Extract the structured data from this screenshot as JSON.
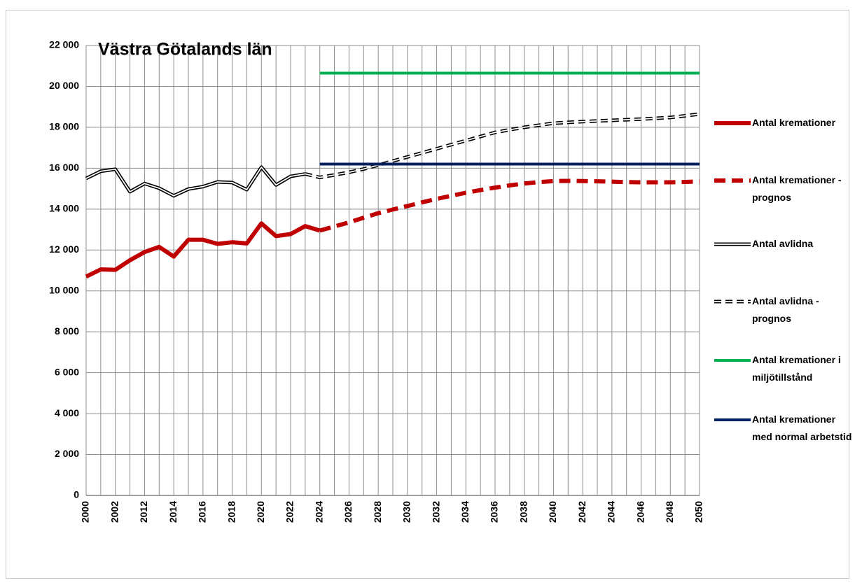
{
  "chart_data": {
    "type": "line",
    "title": "Västra Götalands län",
    "categories": [
      "2000",
      null,
      "2002",
      null,
      "2012",
      null,
      "2014",
      null,
      "2016",
      null,
      "2018",
      null,
      "2020",
      null,
      "2022",
      null,
      "2024",
      null,
      "2026",
      null,
      "2028",
      null,
      "2030",
      null,
      "2032",
      null,
      "2034",
      null,
      "2036",
      null,
      "2038",
      null,
      "2040",
      null,
      "2042",
      null,
      "2044",
      null,
      "2046",
      null,
      "2048",
      null,
      "2050"
    ],
    "ylim": [
      0,
      22000
    ],
    "yticks": [
      0,
      {
        "value": 2000,
        "label": "2 000"
      },
      {
        "value": 4000,
        "label": "4 000"
      },
      {
        "value": 6000,
        "label": "6 000"
      },
      {
        "value": 8000,
        "label": "8 000"
      },
      {
        "value": 10000,
        "label": "10 000"
      },
      {
        "value": 12000,
        "label": "12 000"
      },
      {
        "value": 14000,
        "label": "14 000"
      },
      {
        "value": 16000,
        "label": "16 000"
      },
      {
        "value": 18000,
        "label": "18 000"
      },
      {
        "value": 20000,
        "label": "20 000"
      },
      {
        "value": 22000,
        "label": "22 000"
      }
    ],
    "grid": true,
    "series": [
      {
        "name": "Antal kremationer",
        "color": "#c00000",
        "style": "solid",
        "width": 6,
        "values": [
          10700,
          11050,
          11030,
          11500,
          11900,
          12150,
          11680,
          12500,
          12500,
          12300,
          12380,
          12320,
          13300,
          12680,
          12780,
          13170,
          12950,
          null,
          null,
          null,
          null,
          null,
          null,
          null,
          null,
          null,
          null,
          null,
          null,
          null,
          null,
          null,
          null,
          null,
          null,
          null,
          null,
          null,
          null,
          null,
          null,
          null,
          null
        ]
      },
      {
        "name": "Antal kremationer - prognos",
        "color": "#c00000",
        "style": "dashed",
        "width": 6,
        "values": [
          null,
          null,
          null,
          null,
          null,
          null,
          null,
          null,
          null,
          null,
          null,
          null,
          null,
          null,
          null,
          null,
          12950,
          13150,
          13350,
          13580,
          13800,
          13980,
          14150,
          14330,
          14500,
          14650,
          14800,
          14930,
          15050,
          15160,
          15250,
          15320,
          15370,
          15380,
          15370,
          15360,
          15340,
          15320,
          15310,
          15310,
          15310,
          15330,
          15350
        ]
      },
      {
        "name": "Antal avlidna",
        "color": "#000000",
        "style": "double",
        "width": 5,
        "values": [
          15500,
          15850,
          15950,
          14850,
          15250,
          15020,
          14650,
          14980,
          15100,
          15330,
          15300,
          14950,
          16050,
          15180,
          15600,
          15720,
          null,
          null,
          null,
          null,
          null,
          null,
          null,
          null,
          null,
          null,
          null,
          null,
          null,
          null,
          null,
          null,
          null,
          null,
          null,
          null,
          null,
          null,
          null,
          null,
          null,
          null,
          null
        ]
      },
      {
        "name": "Antal avlidna - prognos",
        "color": "#000000",
        "style": "double-dashed",
        "width": 5,
        "values": [
          null,
          null,
          null,
          null,
          null,
          null,
          null,
          null,
          null,
          null,
          null,
          null,
          null,
          null,
          null,
          15720,
          15550,
          15670,
          15800,
          15960,
          16150,
          16350,
          16550,
          16750,
          16950,
          17150,
          17350,
          17550,
          17750,
          17880,
          18000,
          18100,
          18200,
          18240,
          18280,
          18310,
          18340,
          18370,
          18400,
          18440,
          18480,
          18560,
          18650
        ]
      },
      {
        "name": "Antal kremationer i miljötillstånd",
        "color": "#00b050",
        "style": "solid",
        "width": 4,
        "values": [
          null,
          null,
          null,
          null,
          null,
          null,
          null,
          null,
          null,
          null,
          null,
          null,
          null,
          null,
          null,
          null,
          20650,
          20650,
          20650,
          20650,
          20650,
          20650,
          20650,
          20650,
          20650,
          20650,
          20650,
          20650,
          20650,
          20650,
          20650,
          20650,
          20650,
          20650,
          20650,
          20650,
          20650,
          20650,
          20650,
          20650,
          20650,
          20650,
          20650
        ]
      },
      {
        "name": "Antal kremationer med normal arbetstid",
        "color": "#002060",
        "style": "solid",
        "width": 4,
        "values": [
          null,
          null,
          null,
          null,
          null,
          null,
          null,
          null,
          null,
          null,
          null,
          null,
          null,
          null,
          null,
          null,
          16200,
          16200,
          16200,
          16200,
          16200,
          16200,
          16200,
          16200,
          16200,
          16200,
          16200,
          16200,
          16200,
          16200,
          16200,
          16200,
          16200,
          16200,
          16200,
          16200,
          16200,
          16200,
          16200,
          16200,
          16200,
          16200,
          16200
        ]
      }
    ]
  }
}
